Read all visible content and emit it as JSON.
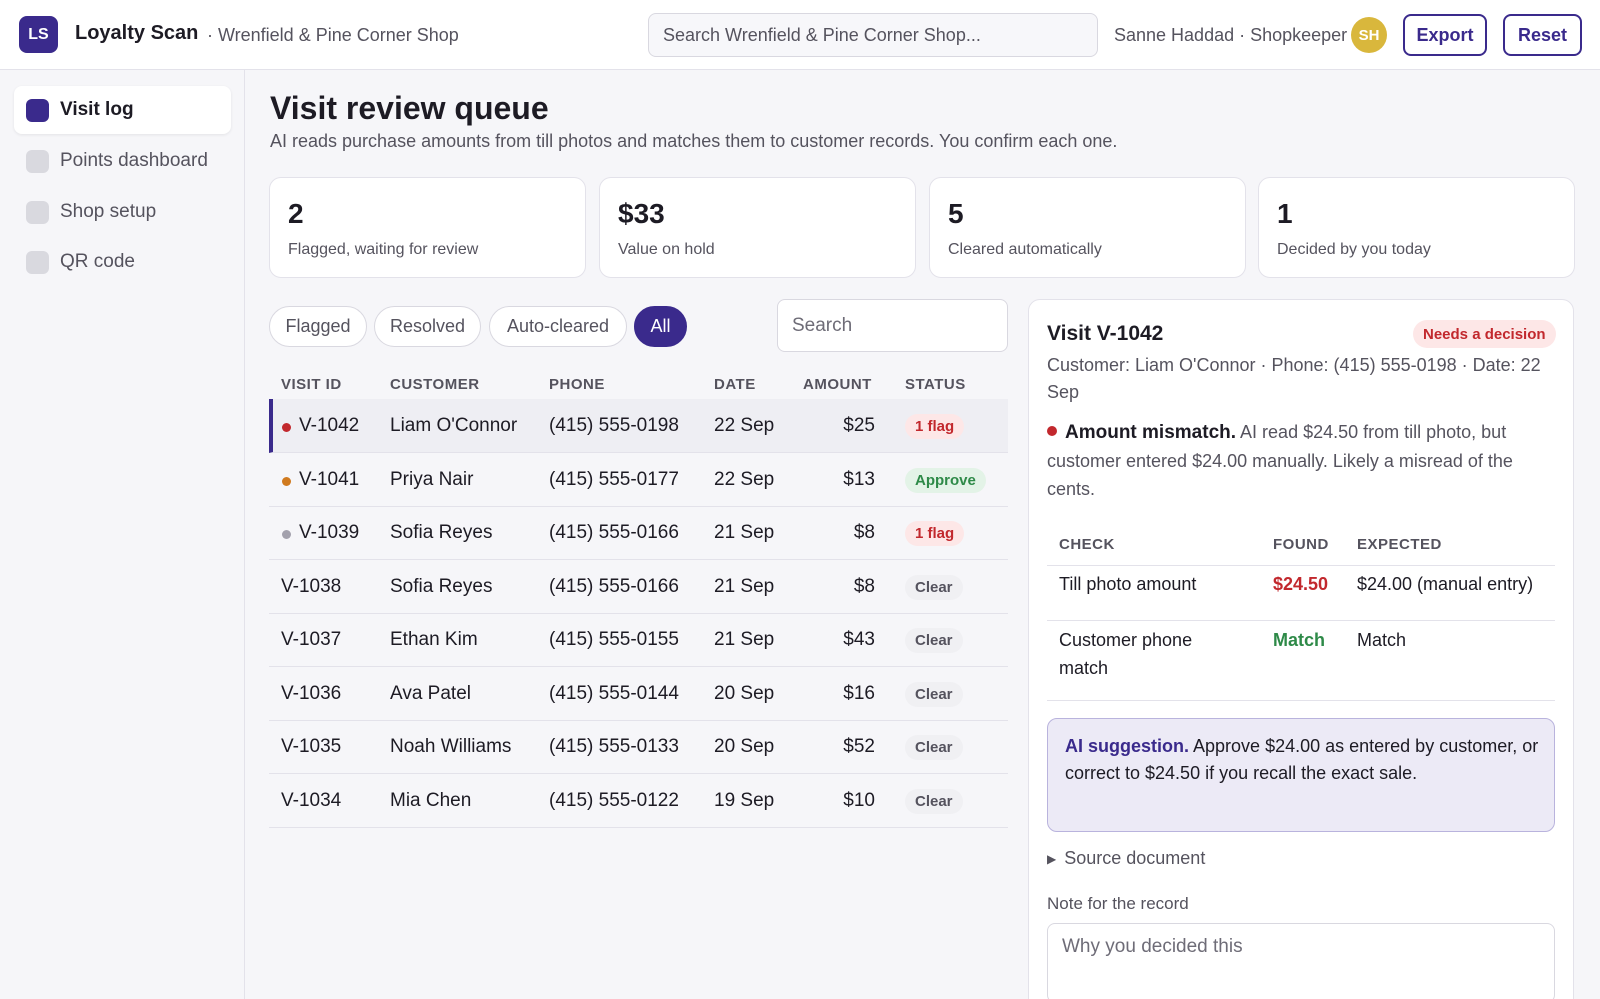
{
  "header": {
    "logo_text": "LS",
    "app_title": "Loyalty Scan",
    "shop_name": "· Wrenfield & Pine Corner Shop",
    "search_placeholder": "Search Wrenfield & Pine Corner Shop...",
    "user": "Sanne Haddad · Shopkeeper",
    "avatar_initials": "SH",
    "export_label": "Export",
    "reset_label": "Reset"
  },
  "sidebar": {
    "items": [
      {
        "label": "Visit log",
        "active": true
      },
      {
        "label": "Points dashboard",
        "active": false
      },
      {
        "label": "Shop setup",
        "active": false
      },
      {
        "label": "QR code",
        "active": false
      }
    ]
  },
  "main": {
    "title": "Visit review queue",
    "subtitle": "AI reads purchase amounts from till photos and matches them to customer records. You confirm each one.",
    "stats": [
      {
        "value": "2",
        "label": "Flagged, waiting for review"
      },
      {
        "value": "$33",
        "label": "Value on hold"
      },
      {
        "value": "5",
        "label": "Cleared automatically"
      },
      {
        "value": "1",
        "label": "Decided by you today"
      }
    ],
    "filters": [
      "Flagged",
      "Resolved",
      "Auto-cleared",
      "All"
    ],
    "active_filter": "All",
    "search_placeholder": "Search",
    "columns": [
      "VISIT ID",
      "CUSTOMER",
      "PHONE",
      "DATE",
      "AMOUNT",
      "STATUS"
    ],
    "rows": [
      {
        "id": "V-1042",
        "customer": "Liam O'Connor",
        "phone": "(415) 555-0198",
        "date": "22 Sep",
        "amount": "$25",
        "status": "1 flag",
        "status_type": "flag",
        "dot": "#c2282d",
        "selected": true
      },
      {
        "id": "V-1041",
        "customer": "Priya Nair",
        "phone": "(415) 555-0177",
        "date": "22 Sep",
        "amount": "$13",
        "status": "Approve",
        "status_type": "approve",
        "dot": "#d07a1f",
        "selected": false
      },
      {
        "id": "V-1039",
        "customer": "Sofia Reyes",
        "phone": "(415) 555-0166",
        "date": "21 Sep",
        "amount": "$8",
        "status": "1 flag",
        "status_type": "flag",
        "dot": "#a3a1ad",
        "selected": false
      },
      {
        "id": "V-1038",
        "customer": "Sofia Reyes",
        "phone": "(415) 555-0166",
        "date": "21 Sep",
        "amount": "$8",
        "status": "Clear",
        "status_type": "clear",
        "dot": null,
        "selected": false
      },
      {
        "id": "V-1037",
        "customer": "Ethan Kim",
        "phone": "(415) 555-0155",
        "date": "21 Sep",
        "amount": "$43",
        "status": "Clear",
        "status_type": "clear",
        "dot": null,
        "selected": false
      },
      {
        "id": "V-1036",
        "customer": "Ava Patel",
        "phone": "(415) 555-0144",
        "date": "20 Sep",
        "amount": "$16",
        "status": "Clear",
        "status_type": "clear",
        "dot": null,
        "selected": false
      },
      {
        "id": "V-1035",
        "customer": "Noah Williams",
        "phone": "(415) 555-0133",
        "date": "20 Sep",
        "amount": "$52",
        "status": "Clear",
        "status_type": "clear",
        "dot": null,
        "selected": false
      },
      {
        "id": "V-1034",
        "customer": "Mia Chen",
        "phone": "(415) 555-0122",
        "date": "19 Sep",
        "amount": "$10",
        "status": "Clear",
        "status_type": "clear",
        "dot": null,
        "selected": false
      }
    ]
  },
  "detail": {
    "title": "Visit V-1042",
    "badge": "Needs a decision",
    "meta": "Customer: Liam O'Connor · Phone: (415) 555-0198 · Date: 22 Sep",
    "issue_title": "Amount mismatch.",
    "issue_text": " AI read $24.50 from till photo, but customer entered $24.00 manually. Likely a misread of the cents.",
    "check_headers": [
      "CHECK",
      "FOUND",
      "EXPECTED"
    ],
    "checks": [
      {
        "check": "Till photo amount",
        "found": "$24.50",
        "found_type": "mismatch",
        "expected": "$24.00 (manual entry)"
      },
      {
        "check": "Customer phone match",
        "found": "Match",
        "found_type": "match",
        "expected": "Match"
      }
    ],
    "ai_title": "AI suggestion.",
    "ai_text": " Approve $24.00 as entered by customer, or correct to $24.50 if you recall the exact sale.",
    "source_label": "Source document",
    "note_label": "Note for the record",
    "note_placeholder": "Why you decided this"
  },
  "colors": {
    "brand": "#3a2a8c",
    "flag": "#c2282d",
    "approve": "#2e8a48",
    "avatar": "#d9b73c"
  }
}
